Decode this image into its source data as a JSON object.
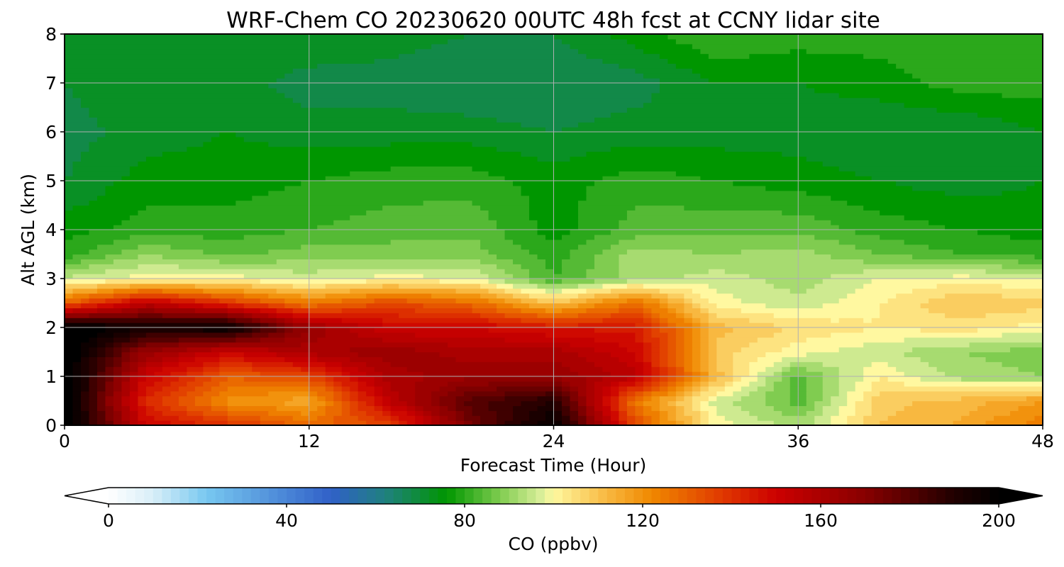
{
  "chart_data": {
    "type": "heatmap",
    "title": "WRF-Chem CO  20230620 00UTC 48h fcst at CCNY lidar site",
    "xlabel": "Forecast Time (Hour)",
    "ylabel": "Alt AGL (km)",
    "x_ticks": [
      "0",
      "12",
      "24",
      "36",
      "48"
    ],
    "y_ticks": [
      "0",
      "1",
      "2",
      "3",
      "4",
      "5",
      "6",
      "7",
      "8"
    ],
    "xlim": [
      0,
      48
    ],
    "ylim": [
      0,
      8
    ],
    "grid": true,
    "colorbar": {
      "label": "CO  (ppbv)",
      "ticks": [
        "0",
        "40",
        "80",
        "120",
        "160",
        "200"
      ],
      "range": [
        0,
        200
      ],
      "extend": "both",
      "orientation": "horizontal",
      "placement": "bottom"
    },
    "colormap_stops": [
      {
        "v": 0,
        "c": "#ffffff"
      },
      {
        "v": 10,
        "c": "#d8eef8"
      },
      {
        "v": 22,
        "c": "#78c8f0"
      },
      {
        "v": 50,
        "c": "#3060c8"
      },
      {
        "v": 62,
        "c": "#208080"
      },
      {
        "v": 76,
        "c": "#009600"
      },
      {
        "v": 88,
        "c": "#80cc50"
      },
      {
        "v": 97,
        "c": "#d8ee98"
      },
      {
        "v": 100,
        "c": "#fff8a0"
      },
      {
        "v": 112,
        "c": "#f8b840"
      },
      {
        "v": 122,
        "c": "#f08800"
      },
      {
        "v": 138,
        "c": "#e03800"
      },
      {
        "v": 150,
        "c": "#cc0000"
      },
      {
        "v": 170,
        "c": "#880000"
      },
      {
        "v": 190,
        "c": "#200000"
      },
      {
        "v": 200,
        "c": "#000000"
      }
    ],
    "z_hours": [
      0,
      4,
      8,
      12,
      16,
      20,
      24,
      28,
      32,
      36,
      40,
      44,
      48
    ],
    "z_altitudes_km": [
      0,
      0.5,
      1,
      1.5,
      2,
      2.5,
      3,
      3.5,
      4,
      5,
      6,
      7,
      8
    ],
    "z_values_ppbv": [
      [
        205,
        150,
        140,
        128,
        135,
        175,
        200,
        135,
        100,
        92,
        110,
        115,
        125
      ],
      [
        205,
        140,
        120,
        115,
        155,
        180,
        190,
        125,
        96,
        84,
        108,
        112,
        118
      ],
      [
        205,
        150,
        130,
        135,
        160,
        165,
        165,
        155,
        112,
        84,
        102,
        92,
        90
      ],
      [
        205,
        165,
        150,
        160,
        165,
        160,
        160,
        150,
        108,
        100,
        95,
        90,
        88
      ],
      [
        205,
        195,
        200,
        165,
        150,
        150,
        145,
        145,
        112,
        105,
        102,
        104,
        100
      ],
      [
        130,
        155,
        140,
        125,
        135,
        128,
        110,
        128,
        100,
        95,
        102,
        110,
        108
      ],
      [
        95,
        100,
        100,
        96,
        100,
        98,
        82,
        92,
        96,
        92,
        98,
        100,
        98
      ],
      [
        80,
        90,
        85,
        88,
        88,
        88,
        80,
        92,
        90,
        92,
        86,
        82,
        80
      ],
      [
        76,
        80,
        80,
        82,
        84,
        85,
        76,
        84,
        85,
        85,
        80,
        78,
        76
      ],
      [
        70,
        76,
        76,
        78,
        80,
        80,
        76,
        80,
        78,
        76,
        74,
        72,
        74
      ],
      [
        68,
        72,
        74,
        72,
        72,
        72,
        70,
        72,
        72,
        72,
        70,
        70,
        74
      ],
      [
        70,
        74,
        72,
        68,
        68,
        66,
        66,
        68,
        74,
        74,
        76,
        80,
        80
      ],
      [
        72,
        74,
        74,
        74,
        72,
        70,
        70,
        76,
        82,
        80,
        80,
        80,
        78
      ]
    ]
  }
}
